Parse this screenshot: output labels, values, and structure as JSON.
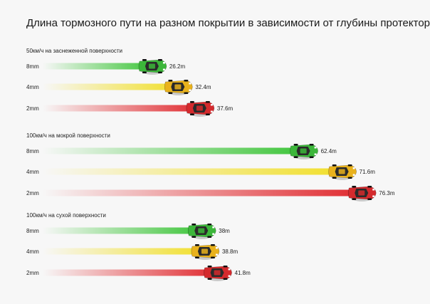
{
  "chart_data": {
    "type": "bar",
    "title": "Длина тормозного пути на разном покрытии в зависимости от глубины протектора",
    "unit": "m",
    "categories": [
      "8mm",
      "4mm",
      "2mm"
    ],
    "groups": [
      {
        "name": "50км/ч на заснеженной поверхности",
        "values": [
          26.2,
          32.4,
          37.6
        ],
        "value_labels": [
          "26.2m",
          "32.4m",
          "37.6m"
        ]
      },
      {
        "name": "100км/ч на мокрой поверхности",
        "values": [
          62.4,
          71.6,
          76.3
        ],
        "value_labels": [
          "62.4m",
          "71.6m",
          "76.3m"
        ]
      },
      {
        "name": "100км/ч на сухой поверхности",
        "values": [
          38,
          38.8,
          41.8
        ],
        "value_labels": [
          "38m",
          "38.8m",
          "41.8m"
        ]
      }
    ],
    "colors": {
      "8mm": "#3ec53a",
      "4mm": "#f1df2a",
      "2mm": "#e02a2f"
    },
    "car_colors": {
      "8mm": "#3cb63a",
      "4mm": "#e9b21c",
      "2mm": "#d42a2d"
    }
  }
}
